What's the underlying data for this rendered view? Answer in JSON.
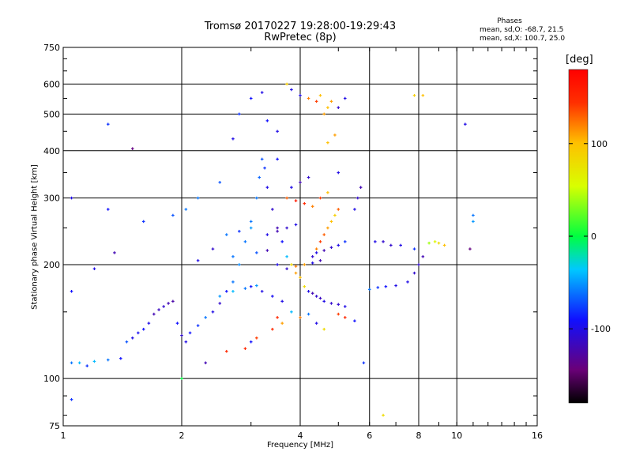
{
  "title_line1": "Tromsø 20170227 19:28:00-19:29:43",
  "title_line2": "RwPretec (8p)",
  "phases": {
    "title": "Phases",
    "o_line": "mean, sd,O: -68.7, 21.5",
    "x_line": "mean, sd,X: 100.7, 25.0"
  },
  "chart_data": {
    "type": "scatter",
    "xlabel": "Frequency [MHz]",
    "ylabel": "Stationary phase Virtual Height [km]",
    "xscale": "log",
    "yscale": "log",
    "xlim": [
      1,
      16
    ],
    "ylim": [
      75,
      750
    ],
    "x_ticks": [
      1,
      2,
      4,
      6,
      8,
      10,
      16
    ],
    "y_ticks": [
      75,
      100,
      200,
      300,
      400,
      500,
      600,
      750
    ],
    "grid": true,
    "colorbar": {
      "label": "[deg]",
      "range": [
        -180,
        180
      ],
      "ticks": [
        100,
        0,
        -100
      ]
    },
    "points": [
      [
        1.05,
        110,
        -60
      ],
      [
        1.1,
        110,
        -40
      ],
      [
        1.15,
        108,
        -80
      ],
      [
        1.2,
        111,
        -40
      ],
      [
        1.3,
        112,
        -60
      ],
      [
        1.4,
        113,
        -90
      ],
      [
        1.45,
        125,
        -70
      ],
      [
        1.5,
        128,
        -100
      ],
      [
        1.55,
        132,
        -95
      ],
      [
        1.6,
        135,
        -90
      ],
      [
        1.65,
        140,
        -100
      ],
      [
        1.7,
        148,
        -120
      ],
      [
        1.75,
        152,
        -115
      ],
      [
        1.8,
        155,
        -110
      ],
      [
        1.85,
        158,
        -120
      ],
      [
        1.9,
        160,
        -125
      ],
      [
        1.95,
        140,
        -90
      ],
      [
        2.0,
        130,
        -110
      ],
      [
        2.05,
        125,
        -100
      ],
      [
        2.1,
        132,
        -90
      ],
      [
        2.2,
        138,
        -80
      ],
      [
        2.3,
        145,
        -60
      ],
      [
        2.4,
        150,
        -100
      ],
      [
        2.5,
        158,
        -110
      ],
      [
        2.6,
        170,
        -90
      ],
      [
        2.7,
        180,
        -60
      ],
      [
        2.8,
        200,
        -55
      ],
      [
        2.9,
        230,
        -60
      ],
      [
        3.0,
        260,
        -60
      ],
      [
        3.1,
        300,
        -60
      ],
      [
        3.15,
        340,
        -65
      ],
      [
        3.2,
        380,
        -70
      ],
      [
        3.25,
        360,
        -80
      ],
      [
        3.3,
        320,
        -100
      ],
      [
        3.4,
        280,
        -110
      ],
      [
        3.5,
        250,
        -120
      ],
      [
        3.6,
        230,
        -90
      ],
      [
        3.7,
        210,
        -40
      ],
      [
        3.8,
        200,
        80
      ],
      [
        3.9,
        190,
        110
      ],
      [
        4.0,
        185,
        100
      ],
      [
        4.1,
        175,
        80
      ],
      [
        4.2,
        170,
        -100
      ],
      [
        4.3,
        168,
        -120
      ],
      [
        4.4,
        165,
        -110
      ],
      [
        4.5,
        163,
        -115
      ],
      [
        4.6,
        160,
        -100
      ],
      [
        4.8,
        158,
        -110
      ],
      [
        5.0,
        157,
        -110
      ],
      [
        5.2,
        155,
        -100
      ],
      [
        3.6,
        160,
        -100
      ],
      [
        3.4,
        165,
        -95
      ],
      [
        3.2,
        170,
        -100
      ],
      [
        3.0,
        175,
        -90
      ],
      [
        4.4,
        220,
        120
      ],
      [
        4.5,
        230,
        140
      ],
      [
        4.6,
        240,
        130
      ],
      [
        4.7,
        250,
        110
      ],
      [
        4.8,
        260,
        100
      ],
      [
        4.9,
        270,
        90
      ],
      [
        5.0,
        280,
        130
      ],
      [
        4.6,
        500,
        110
      ],
      [
        4.7,
        520,
        100
      ],
      [
        4.8,
        540,
        110
      ],
      [
        4.5,
        560,
        100
      ],
      [
        4.3,
        210,
        -110
      ],
      [
        4.4,
        215,
        -100
      ],
      [
        4.6,
        218,
        -120
      ],
      [
        4.8,
        222,
        -110
      ],
      [
        5.0,
        225,
        -100
      ],
      [
        5.2,
        230,
        -80
      ],
      [
        5.5,
        280,
        -100
      ],
      [
        5.6,
        300,
        -110
      ],
      [
        5.7,
        320,
        -120
      ],
      [
        5.0,
        350,
        -100
      ],
      [
        4.2,
        340,
        -110
      ],
      [
        4.0,
        330,
        -120
      ],
      [
        3.8,
        320,
        -100
      ],
      [
        3.5,
        380,
        -90
      ],
      [
        6.2,
        230,
        -100
      ],
      [
        6.5,
        230,
        -110
      ],
      [
        6.8,
        225,
        -110
      ],
      [
        7.2,
        225,
        -100
      ],
      [
        7.8,
        220,
        -80
      ],
      [
        6.0,
        172,
        -60
      ],
      [
        6.3,
        174,
        -80
      ],
      [
        6.6,
        175,
        -90
      ],
      [
        7.0,
        176,
        -100
      ],
      [
        7.5,
        180,
        -100
      ],
      [
        7.8,
        190,
        -110
      ],
      [
        8.0,
        200,
        -110
      ],
      [
        8.2,
        210,
        -120
      ],
      [
        8.5,
        228,
        40
      ],
      [
        8.8,
        230,
        60
      ],
      [
        9.0,
        228,
        80
      ],
      [
        9.3,
        225,
        100
      ],
      [
        8.2,
        560,
        100
      ],
      [
        7.8,
        560,
        90
      ],
      [
        10.5,
        470,
        -100
      ],
      [
        11.0,
        270,
        -60
      ],
      [
        11.0,
        260,
        -50
      ],
      [
        10.8,
        220,
        -140
      ],
      [
        1.3,
        470,
        -80
      ],
      [
        1.3,
        280,
        -90
      ],
      [
        1.5,
        405,
        -140
      ],
      [
        1.05,
        300,
        -100
      ],
      [
        1.05,
        170,
        -90
      ],
      [
        1.2,
        195,
        -100
      ],
      [
        1.35,
        215,
        -120
      ],
      [
        1.6,
        260,
        -80
      ],
      [
        1.9,
        270,
        -70
      ],
      [
        2.05,
        280,
        -60
      ],
      [
        2.2,
        300,
        -60
      ],
      [
        2.5,
        330,
        -70
      ],
      [
        2.7,
        430,
        -100
      ],
      [
        2.8,
        500,
        -80
      ],
      [
        3.0,
        550,
        -90
      ],
      [
        3.2,
        570,
        -100
      ],
      [
        3.3,
        480,
        -90
      ],
      [
        3.5,
        450,
        -100
      ],
      [
        3.7,
        600,
        90
      ],
      [
        3.8,
        580,
        -100
      ],
      [
        4.0,
        560,
        -100
      ],
      [
        4.2,
        550,
        120
      ],
      [
        4.4,
        540,
        140
      ],
      [
        5.0,
        520,
        -110
      ],
      [
        5.2,
        550,
        -100
      ],
      [
        2.3,
        110,
        -120
      ],
      [
        2.6,
        118,
        150
      ],
      [
        2.9,
        120,
        150
      ],
      [
        3.0,
        125,
        -90
      ],
      [
        3.1,
        128,
        140
      ],
      [
        3.4,
        135,
        150
      ],
      [
        3.5,
        145,
        150
      ],
      [
        3.6,
        140,
        110
      ],
      [
        3.8,
        150,
        -40
      ],
      [
        4.0,
        145,
        120
      ],
      [
        4.2,
        148,
        -60
      ],
      [
        4.4,
        140,
        -100
      ],
      [
        4.6,
        135,
        80
      ],
      [
        5.0,
        148,
        140
      ],
      [
        5.2,
        145,
        150
      ],
      [
        5.5,
        142,
        -90
      ],
      [
        5.8,
        110,
        -80
      ],
      [
        6.5,
        80,
        80
      ],
      [
        1.05,
        88,
        -80
      ],
      [
        2.0,
        100,
        0
      ],
      [
        3.7,
        300,
        130
      ],
      [
        3.9,
        295,
        160
      ],
      [
        4.1,
        290,
        150
      ],
      [
        4.3,
        285,
        120
      ],
      [
        4.5,
        300,
        140
      ],
      [
        4.7,
        310,
        100
      ],
      [
        3.3,
        240,
        -100
      ],
      [
        3.5,
        245,
        -120
      ],
      [
        3.7,
        250,
        -110
      ],
      [
        3.9,
        255,
        -100
      ],
      [
        2.6,
        240,
        -60
      ],
      [
        2.8,
        245,
        -80
      ],
      [
        3.0,
        250,
        -50
      ],
      [
        2.4,
        220,
        -110
      ],
      [
        2.2,
        205,
        -100
      ],
      [
        2.7,
        210,
        -60
      ],
      [
        3.1,
        215,
        -70
      ],
      [
        3.3,
        218,
        -120
      ],
      [
        2.5,
        165,
        -50
      ],
      [
        2.7,
        170,
        -40
      ],
      [
        2.9,
        173,
        -60
      ],
      [
        3.1,
        176,
        -50
      ],
      [
        4.7,
        420,
        100
      ],
      [
        4.9,
        440,
        110
      ],
      [
        3.5,
        200,
        -100
      ],
      [
        3.7,
        195,
        -110
      ],
      [
        3.9,
        198,
        120
      ],
      [
        4.1,
        200,
        110
      ],
      [
        4.3,
        202,
        -100
      ],
      [
        4.5,
        205,
        -120
      ]
    ]
  }
}
